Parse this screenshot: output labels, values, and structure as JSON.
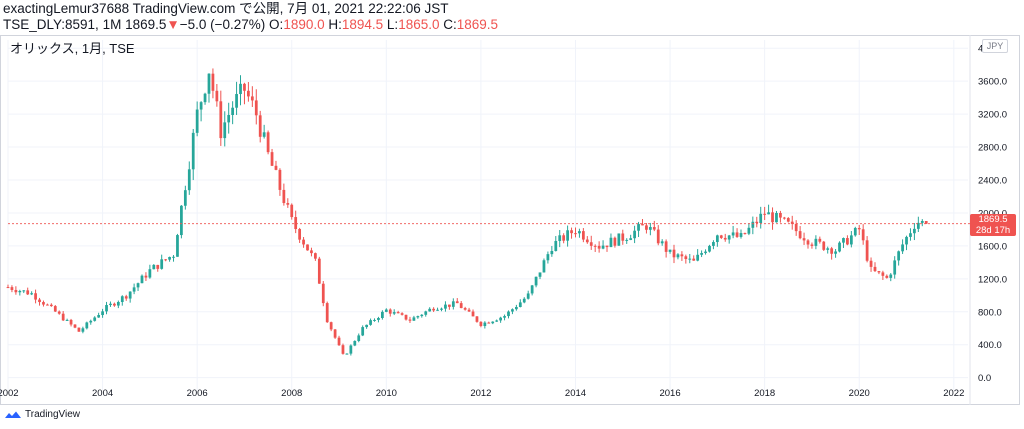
{
  "header": {
    "line1": "exactingLemur37688 TradingView.com で公開, 7月 01, 2021 22:22:06 JST",
    "line2_prefix": "TSE_DLY:8591, 1M 1869.5",
    "change": "−5.0 (−0.27%)",
    "o_label": " O:",
    "o_value": "1890.0",
    "h_label": " H:",
    "h_value": "1894.5",
    "l_label": " L:",
    "l_value": "1865.0",
    "c_label": " C:",
    "c_value": "1869.5",
    "down_arrow": "▼"
  },
  "symbol_title": "オリックス, 1月, TSE",
  "currency": "JPY",
  "last_price": {
    "value": "1869.5",
    "countdown": "28d 17h"
  },
  "footer": {
    "brand": "TradingView"
  },
  "colors": {
    "up": "#26a69a",
    "down": "#ef5350",
    "grid": "#f0f3fa",
    "axis_text": "#131722",
    "price_line": "#ef5350"
  },
  "chart_data": {
    "type": "candlestick",
    "title": "オリックス, 1月, TSE",
    "xlabel": "",
    "ylabel": "",
    "x_ticks": [
      "2002",
      "2004",
      "2006",
      "2008",
      "2010",
      "2012",
      "2014",
      "2016",
      "2018",
      "2020",
      "2022"
    ],
    "y_ticks": [
      "0.0",
      "400.0",
      "800.0",
      "1200.0",
      "1600.0",
      "2000.0",
      "2400.0",
      "2800.0",
      "3200.0",
      "3600.0",
      "4000.0"
    ],
    "ylim": [
      -150,
      4100
    ],
    "xlim": [
      2002.0,
      2022.3
    ],
    "grid": true,
    "series": [
      {
        "type": "candlestick",
        "approx_closes": [
          {
            "t": 2002.0,
            "v": 1100
          },
          {
            "t": 2002.5,
            "v": 1020
          },
          {
            "t": 2003.0,
            "v": 800
          },
          {
            "t": 2003.5,
            "v": 560
          },
          {
            "t": 2004.0,
            "v": 820
          },
          {
            "t": 2004.5,
            "v": 1000
          },
          {
            "t": 2005.0,
            "v": 1300
          },
          {
            "t": 2005.5,
            "v": 1500
          },
          {
            "t": 2006.0,
            "v": 3200
          },
          {
            "t": 2006.25,
            "v": 3750
          },
          {
            "t": 2006.5,
            "v": 3000
          },
          {
            "t": 2006.75,
            "v": 3300
          },
          {
            "t": 2007.0,
            "v": 3500
          },
          {
            "t": 2007.25,
            "v": 3200
          },
          {
            "t": 2007.5,
            "v": 2700
          },
          {
            "t": 2007.75,
            "v": 2300
          },
          {
            "t": 2008.0,
            "v": 1900
          },
          {
            "t": 2008.5,
            "v": 1400
          },
          {
            "t": 2008.75,
            "v": 700
          },
          {
            "t": 2009.1,
            "v": 250
          },
          {
            "t": 2009.5,
            "v": 600
          },
          {
            "t": 2010.0,
            "v": 820
          },
          {
            "t": 2010.5,
            "v": 700
          },
          {
            "t": 2011.0,
            "v": 850
          },
          {
            "t": 2011.5,
            "v": 900
          },
          {
            "t": 2012.0,
            "v": 650
          },
          {
            "t": 2012.5,
            "v": 750
          },
          {
            "t": 2013.0,
            "v": 1000
          },
          {
            "t": 2013.5,
            "v": 1600
          },
          {
            "t": 2014.0,
            "v": 1800
          },
          {
            "t": 2014.5,
            "v": 1600
          },
          {
            "t": 2015.0,
            "v": 1700
          },
          {
            "t": 2015.5,
            "v": 1850
          },
          {
            "t": 2016.0,
            "v": 1500
          },
          {
            "t": 2016.5,
            "v": 1400
          },
          {
            "t": 2017.0,
            "v": 1750
          },
          {
            "t": 2017.5,
            "v": 1700
          },
          {
            "t": 2018.0,
            "v": 2000
          },
          {
            "t": 2018.5,
            "v": 1850
          },
          {
            "t": 2019.0,
            "v": 1650
          },
          {
            "t": 2019.5,
            "v": 1550
          },
          {
            "t": 2020.0,
            "v": 1800
          },
          {
            "t": 2020.25,
            "v": 1300
          },
          {
            "t": 2020.6,
            "v": 1200
          },
          {
            "t": 2020.9,
            "v": 1600
          },
          {
            "t": 2021.2,
            "v": 1900
          },
          {
            "t": 2021.45,
            "v": 1869.5
          }
        ]
      }
    ],
    "last": {
      "open": 1890.0,
      "high": 1894.5,
      "low": 1865.0,
      "close": 1869.5
    }
  }
}
